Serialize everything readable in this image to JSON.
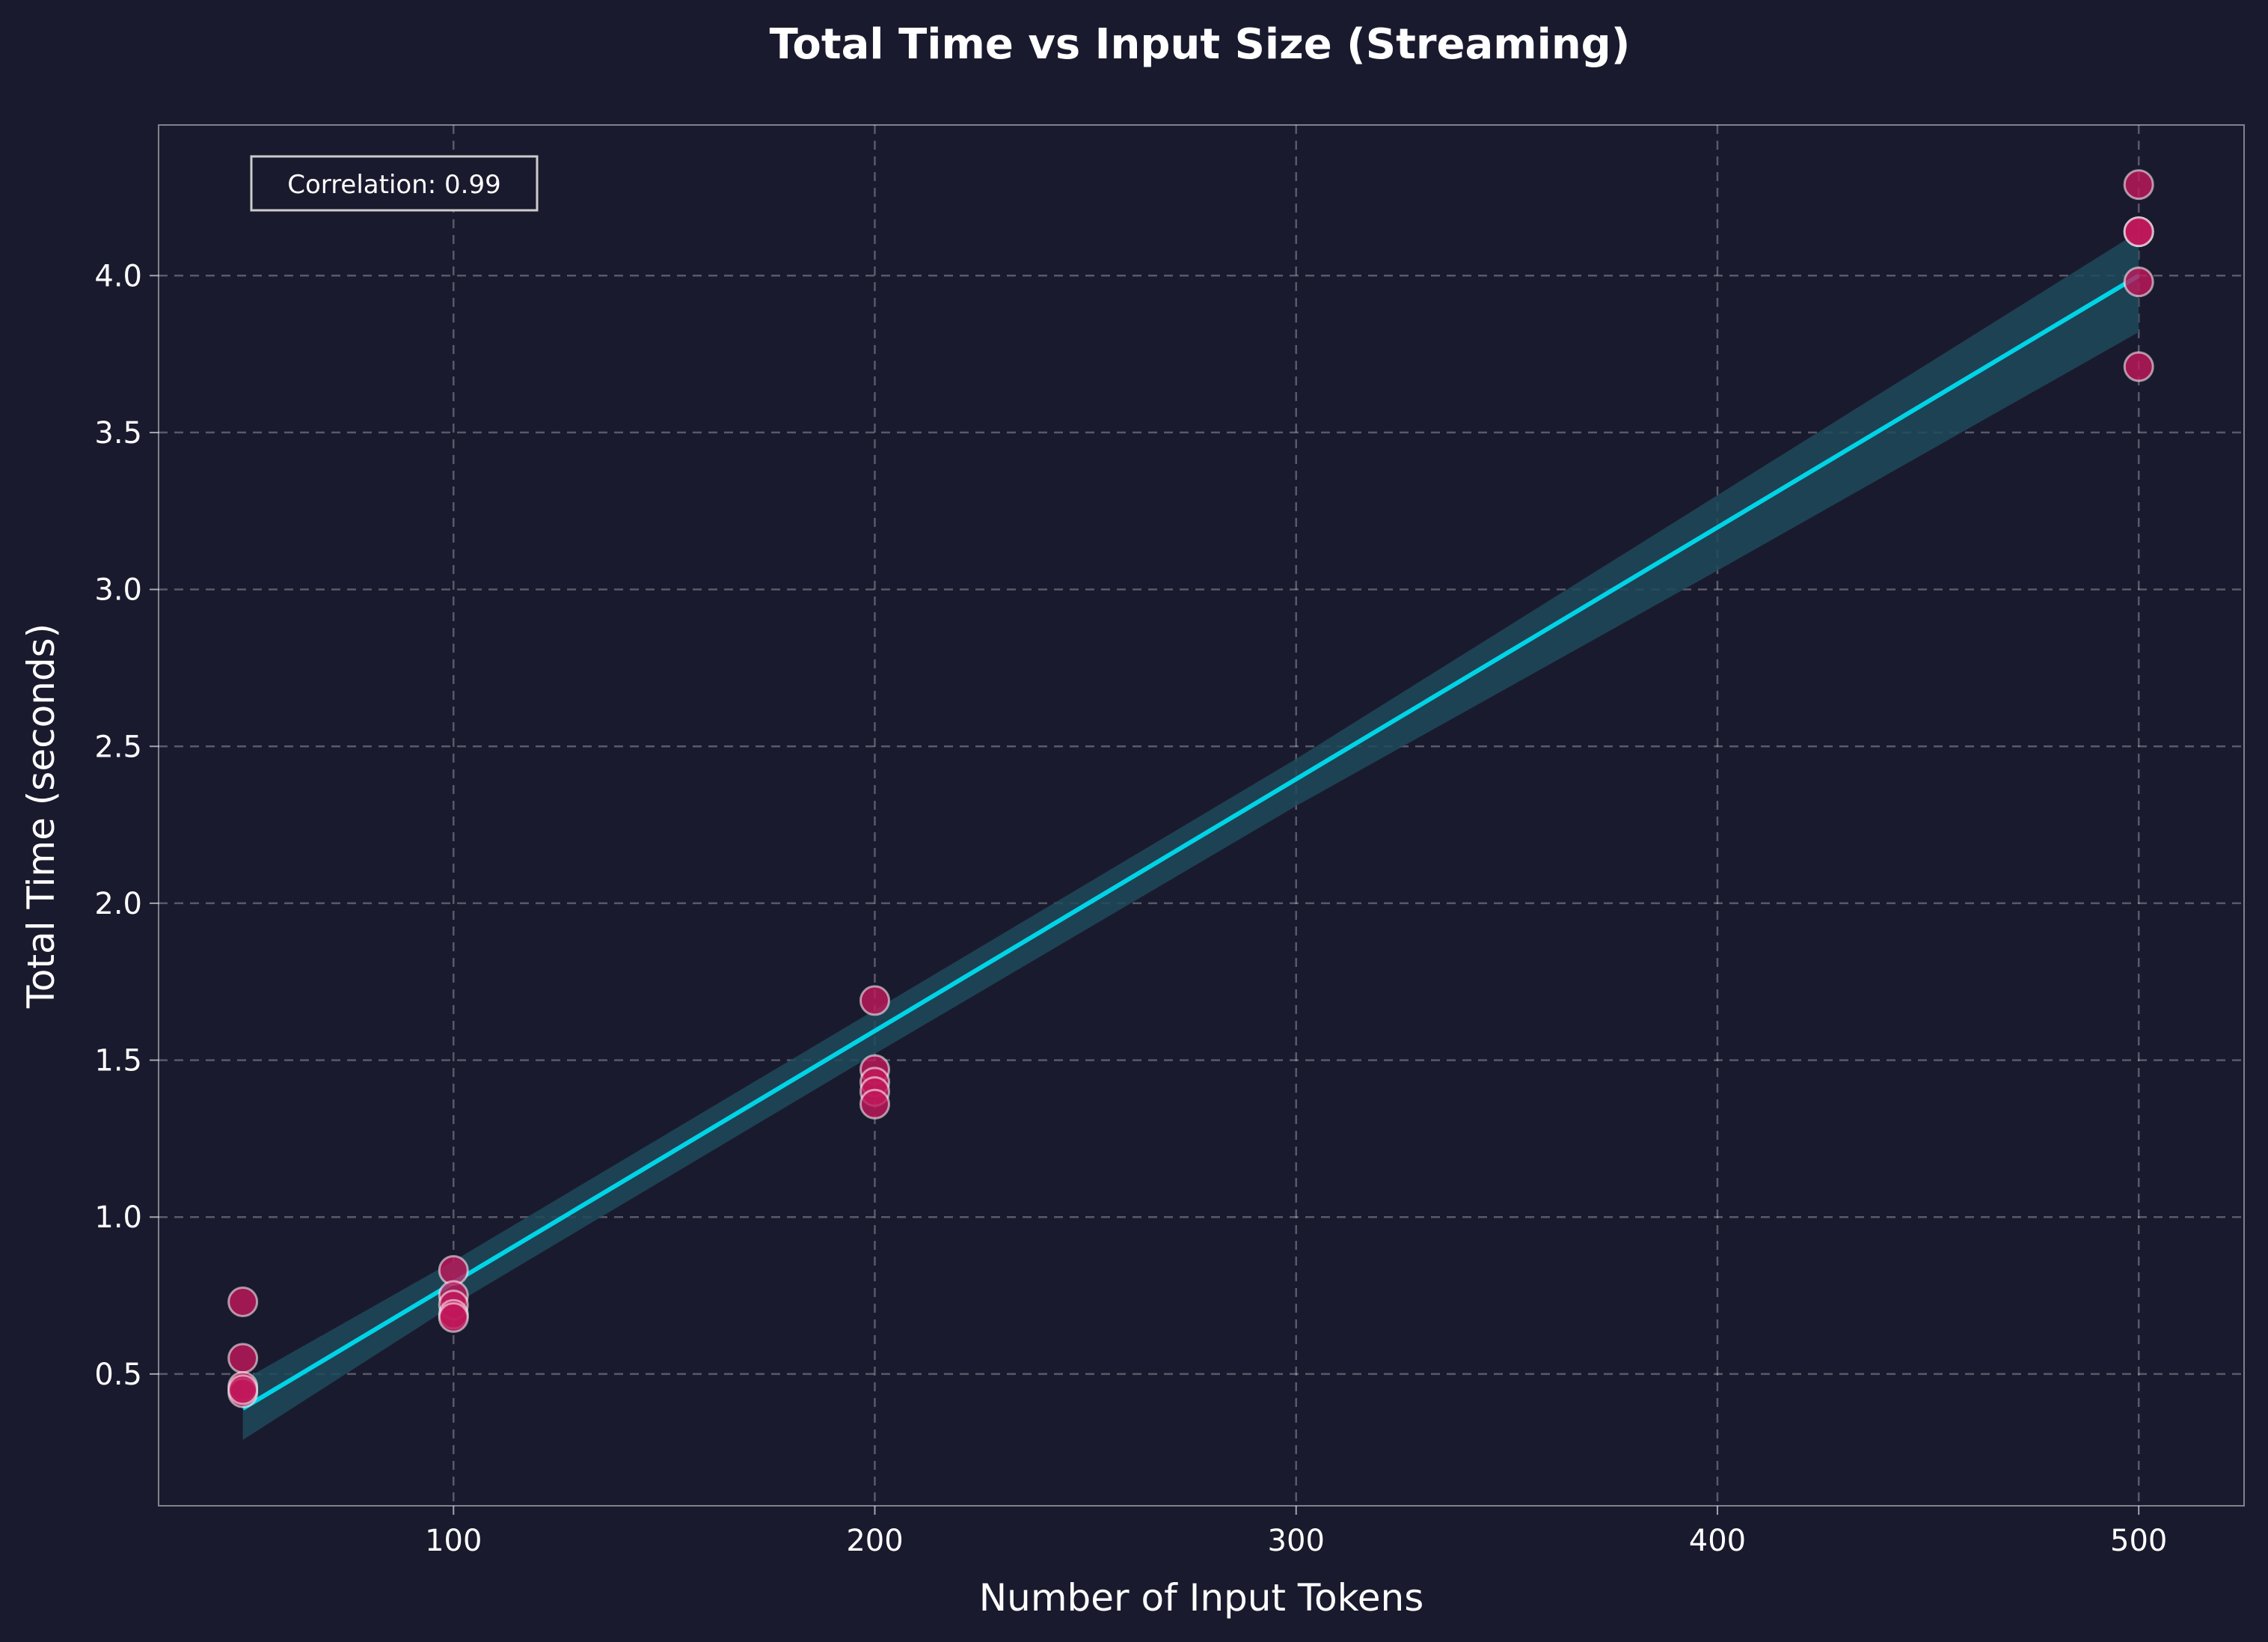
{
  "chart_data": {
    "type": "scatter",
    "title": "Total Time vs Input Size (Streaming)",
    "xlabel": "Number of Input Tokens",
    "ylabel": "Total Time (seconds)",
    "xlim": [
      30,
      525
    ],
    "ylim": [
      0.08,
      4.48
    ],
    "xticks": [
      100,
      200,
      300,
      400,
      500
    ],
    "yticks": [
      0.5,
      1.0,
      1.5,
      2.0,
      2.5,
      3.0,
      3.5,
      4.0
    ],
    "xtick_labels": [
      "100",
      "200",
      "300",
      "400",
      "500"
    ],
    "ytick_labels": [
      "0.5",
      "1.0",
      "1.5",
      "2.0",
      "2.5",
      "3.0",
      "3.5",
      "4.0"
    ],
    "grid": true,
    "annotation": "Correlation: 0.99",
    "points": [
      {
        "x": 50,
        "y": 0.73
      },
      {
        "x": 50,
        "y": 0.55
      },
      {
        "x": 50,
        "y": 0.46
      },
      {
        "x": 50,
        "y": 0.44
      },
      {
        "x": 50,
        "y": 0.45
      },
      {
        "x": 100,
        "y": 0.83
      },
      {
        "x": 100,
        "y": 0.75
      },
      {
        "x": 100,
        "y": 0.72
      },
      {
        "x": 100,
        "y": 0.69
      },
      {
        "x": 100,
        "y": 0.68
      },
      {
        "x": 200,
        "y": 1.69
      },
      {
        "x": 200,
        "y": 1.47
      },
      {
        "x": 200,
        "y": 1.43
      },
      {
        "x": 200,
        "y": 1.4
      },
      {
        "x": 200,
        "y": 1.36
      },
      {
        "x": 500,
        "y": 4.29
      },
      {
        "x": 500,
        "y": 4.14
      },
      {
        "x": 500,
        "y": 4.14
      },
      {
        "x": 500,
        "y": 3.98
      },
      {
        "x": 500,
        "y": 3.71
      }
    ],
    "fit_line": {
      "x": [
        50,
        500
      ],
      "y": [
        0.39,
        4.0
      ]
    },
    "confidence_band": {
      "x": [
        50,
        100,
        200,
        300,
        400,
        500
      ],
      "lower": [
        0.29,
        0.72,
        1.52,
        2.31,
        3.06,
        3.82
      ],
      "upper": [
        0.48,
        0.86,
        1.66,
        2.46,
        3.3,
        4.14
      ]
    },
    "colors": {
      "background": "#1a1a2e",
      "point_fill": "#c2185b",
      "point_highlight": "#ff3d7f",
      "fit_line": "#00d4e6",
      "band": "#1e4a5a"
    }
  }
}
